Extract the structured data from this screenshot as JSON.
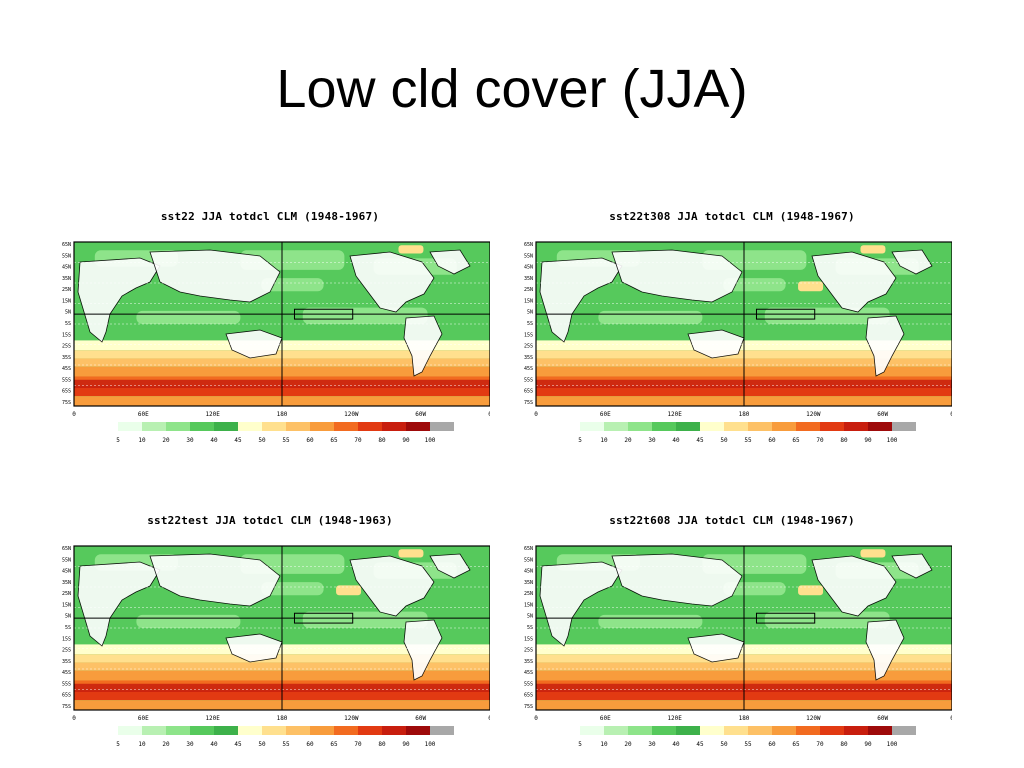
{
  "slide": {
    "title": "Low cld cover (JJA)"
  },
  "panels": [
    {
      "title": "sst22 JJA totdcl CLM (1948-1967)"
    },
    {
      "title": "sst22t308 JJA totdcl CLM (1948-1967)"
    },
    {
      "title": "sst22test JJA totdcl CLM (1948-1963)"
    },
    {
      "title": "sst22t608 JJA totdcl CLM (1948-1967)"
    }
  ],
  "map": {
    "lat_labels": [
      "65N",
      "55N",
      "45N",
      "35N",
      "25N",
      "15N",
      "5N",
      "5S",
      "15S",
      "25S",
      "35S",
      "45S",
      "55S",
      "65S",
      "75S"
    ],
    "lon_labels": [
      "0",
      "60E",
      "120E",
      "180",
      "120W",
      "60W",
      "0"
    ],
    "field": "low cloud cover (%)",
    "season": "JJA"
  },
  "colorbar": {
    "labels": [
      "5",
      "10",
      "20",
      "30",
      "40",
      "45",
      "50",
      "55",
      "60",
      "65",
      "70",
      "80",
      "90",
      "100"
    ],
    "colors": [
      "#eaffea",
      "#b8f0b2",
      "#8ee48a",
      "#56c95c",
      "#3db14a",
      "#ffffcc",
      "#ffe08e",
      "#fdc166",
      "#f89c3c",
      "#f26b20",
      "#e23a12",
      "#c81e0e",
      "#9e0a0a",
      "#a8a8a8"
    ]
  }
}
